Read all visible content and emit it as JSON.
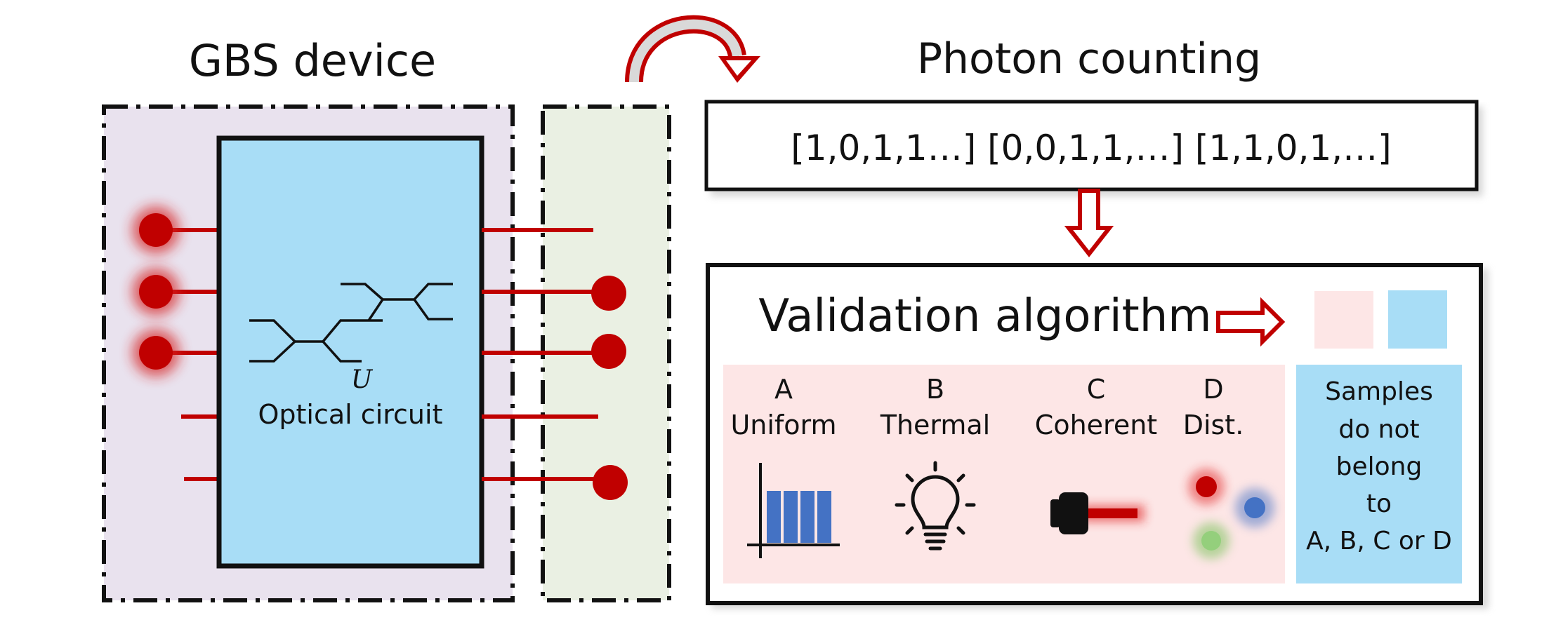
{
  "gbs_device": {
    "title": "GBS device",
    "circuit_label": "Optical circuit",
    "unitary_symbol": "U"
  },
  "photon_counting": {
    "title": "Photon counting",
    "samples_text": "[1,0,1,1…] [0,0,1,1,…] [1,1,0,1,…]"
  },
  "validation": {
    "title": "Validation algorithm",
    "categories": [
      {
        "letter": "A",
        "name": "Uniform",
        "icon": "uniform-histogram-icon"
      },
      {
        "letter": "B",
        "name": "Thermal",
        "icon": "light-bulb-icon"
      },
      {
        "letter": "C",
        "name": "Coherent",
        "icon": "laser-icon"
      },
      {
        "letter": "D",
        "name": "Dist.",
        "icon": "distinguishable-particles-icon"
      }
    ],
    "outcome_lines": [
      "Samples",
      "do not",
      "belong",
      "to",
      "A, B, C or D"
    ]
  },
  "colors": {
    "accent_red": "#c00000",
    "device_bg": "#e9e2ee",
    "detector_bg": "#eaf0e3",
    "circuit_fill": "#a8ddf6",
    "category_bg": "#fde6e6",
    "outcome_bg": "#a8ddf6",
    "bar_blue": "#4472c4"
  }
}
